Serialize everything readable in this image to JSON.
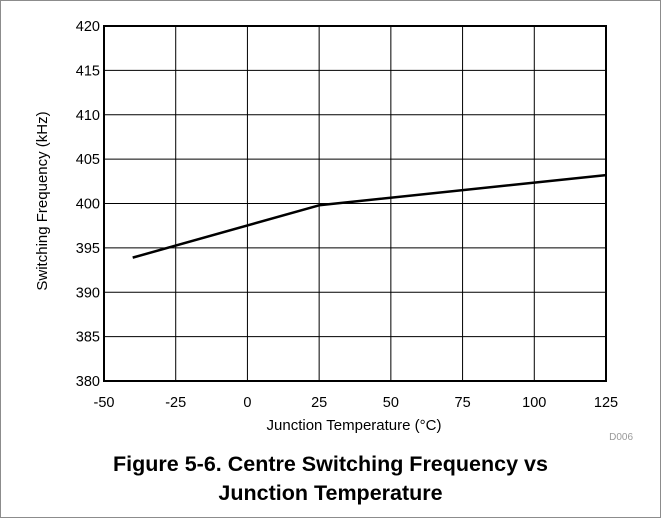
{
  "chart_data": {
    "type": "line",
    "x": [
      -40,
      25,
      125
    ],
    "series": [
      {
        "values": [
          393.9,
          399.8,
          403.2
        ],
        "color": "#000000"
      }
    ],
    "xlabel": "Junction Temperature (°C)",
    "ylabel": "Switching Frequency (kHz)",
    "xlim": [
      -50,
      125
    ],
    "ylim": [
      380,
      420
    ],
    "xticks": [
      -50,
      -25,
      0,
      25,
      50,
      75,
      100,
      125
    ],
    "yticks": [
      380,
      385,
      390,
      395,
      400,
      405,
      410,
      415,
      420
    ],
    "grid": true,
    "legend": "none"
  },
  "figure_code": "D006",
  "caption": {
    "line1": "Figure 5-6. Centre Switching Frequency vs",
    "line2": "Junction Temperature"
  }
}
